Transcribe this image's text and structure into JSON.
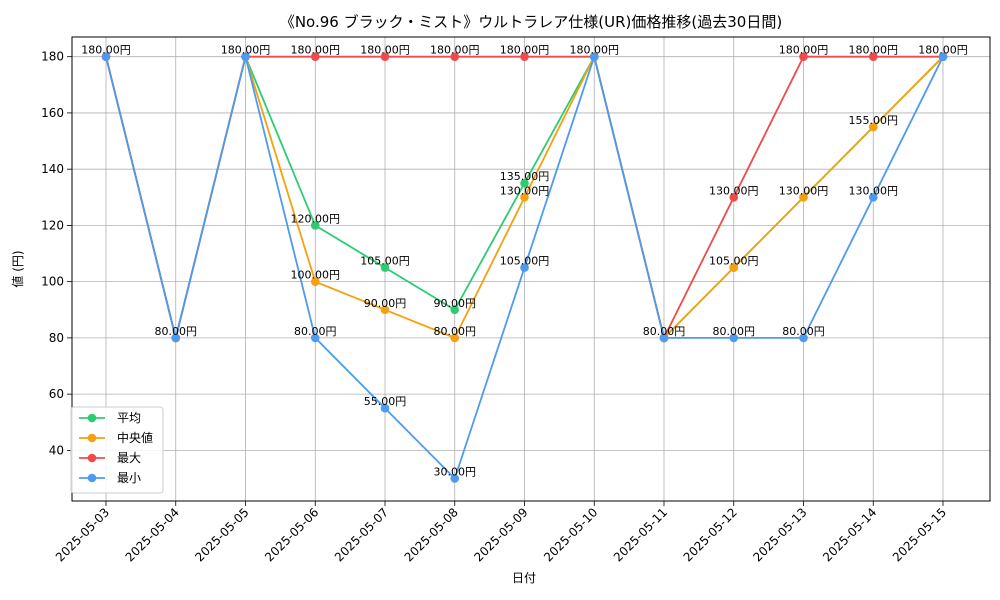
{
  "chart_data": {
    "type": "line",
    "title": "《No.96 ブラック・ミスト》ウルトラレア仕様(UR)価格推移(過去30日間)",
    "xlabel": "日付",
    "ylabel": "値 (円)",
    "x": [
      "2025-05-03",
      "2025-05-04",
      "2025-05-05",
      "2025-05-06",
      "2025-05-07",
      "2025-05-08",
      "2025-05-09",
      "2025-05-10",
      "2025-05-11",
      "2025-05-12",
      "2025-05-13",
      "2025-05-14",
      "2025-05-15"
    ],
    "ylim": [
      22,
      187
    ],
    "yticks": [
      40,
      60,
      80,
      100,
      120,
      140,
      160,
      180
    ],
    "grid": true,
    "legend_position": "lower-left",
    "value_suffix": "円",
    "series": [
      {
        "name": "平均",
        "color": "#2ecc71",
        "values": [
          180,
          80,
          180,
          120,
          105,
          90,
          135,
          180,
          80,
          105,
          130,
          155,
          180
        ]
      },
      {
        "name": "中央値",
        "color": "#f5a00f",
        "values": [
          180,
          80,
          180,
          100,
          90,
          80,
          130,
          180,
          80,
          105,
          130,
          155,
          180
        ]
      },
      {
        "name": "最大",
        "color": "#ef4b4b",
        "values": [
          180,
          80,
          180,
          180,
          180,
          180,
          180,
          180,
          80,
          130,
          180,
          180,
          180
        ]
      },
      {
        "name": "最小",
        "color": "#4d9bf0",
        "values": [
          180,
          80,
          180,
          80,
          55,
          30,
          105,
          180,
          80,
          80,
          80,
          130,
          180
        ]
      }
    ],
    "data_labels": [
      {
        "x": "2025-05-03",
        "y": 180,
        "text": "180.00円"
      },
      {
        "x": "2025-05-04",
        "y": 80,
        "text": "80.00円"
      },
      {
        "x": "2025-05-05",
        "y": 180,
        "text": "180.00円"
      },
      {
        "x": "2025-05-06",
        "y": 180,
        "text": "180.00円"
      },
      {
        "x": "2025-05-06",
        "y": 120,
        "text": "120.00円"
      },
      {
        "x": "2025-05-06",
        "y": 100,
        "text": "100.00円"
      },
      {
        "x": "2025-05-06",
        "y": 80,
        "text": "80.00円"
      },
      {
        "x": "2025-05-07",
        "y": 180,
        "text": "180.00円"
      },
      {
        "x": "2025-05-07",
        "y": 105,
        "text": "105.00円"
      },
      {
        "x": "2025-05-07",
        "y": 90,
        "text": "90.00円"
      },
      {
        "x": "2025-05-07",
        "y": 55,
        "text": "55.00円"
      },
      {
        "x": "2025-05-08",
        "y": 180,
        "text": "180.00円"
      },
      {
        "x": "2025-05-08",
        "y": 90,
        "text": "90.00円"
      },
      {
        "x": "2025-05-08",
        "y": 80,
        "text": "80.00円"
      },
      {
        "x": "2025-05-08",
        "y": 30,
        "text": "30.00円"
      },
      {
        "x": "2025-05-09",
        "y": 180,
        "text": "180.00円"
      },
      {
        "x": "2025-05-09",
        "y": 135,
        "text": "135.00円"
      },
      {
        "x": "2025-05-09",
        "y": 130,
        "text": "130.00円"
      },
      {
        "x": "2025-05-09",
        "y": 105,
        "text": "105.00円"
      },
      {
        "x": "2025-05-10",
        "y": 180,
        "text": "180.00円"
      },
      {
        "x": "2025-05-11",
        "y": 80,
        "text": "80.00円"
      },
      {
        "x": "2025-05-12",
        "y": 130,
        "text": "130.00円"
      },
      {
        "x": "2025-05-12",
        "y": 105,
        "text": "105.00円"
      },
      {
        "x": "2025-05-12",
        "y": 80,
        "text": "80.00円"
      },
      {
        "x": "2025-05-13",
        "y": 180,
        "text": "180.00円"
      },
      {
        "x": "2025-05-13",
        "y": 130,
        "text": "130.00円"
      },
      {
        "x": "2025-05-13",
        "y": 80,
        "text": "80.00円"
      },
      {
        "x": "2025-05-14",
        "y": 180,
        "text": "180.00円"
      },
      {
        "x": "2025-05-14",
        "y": 155,
        "text": "155.00円"
      },
      {
        "x": "2025-05-14",
        "y": 130,
        "text": "130.00円"
      },
      {
        "x": "2025-05-15",
        "y": 180,
        "text": "180.00円"
      }
    ]
  }
}
